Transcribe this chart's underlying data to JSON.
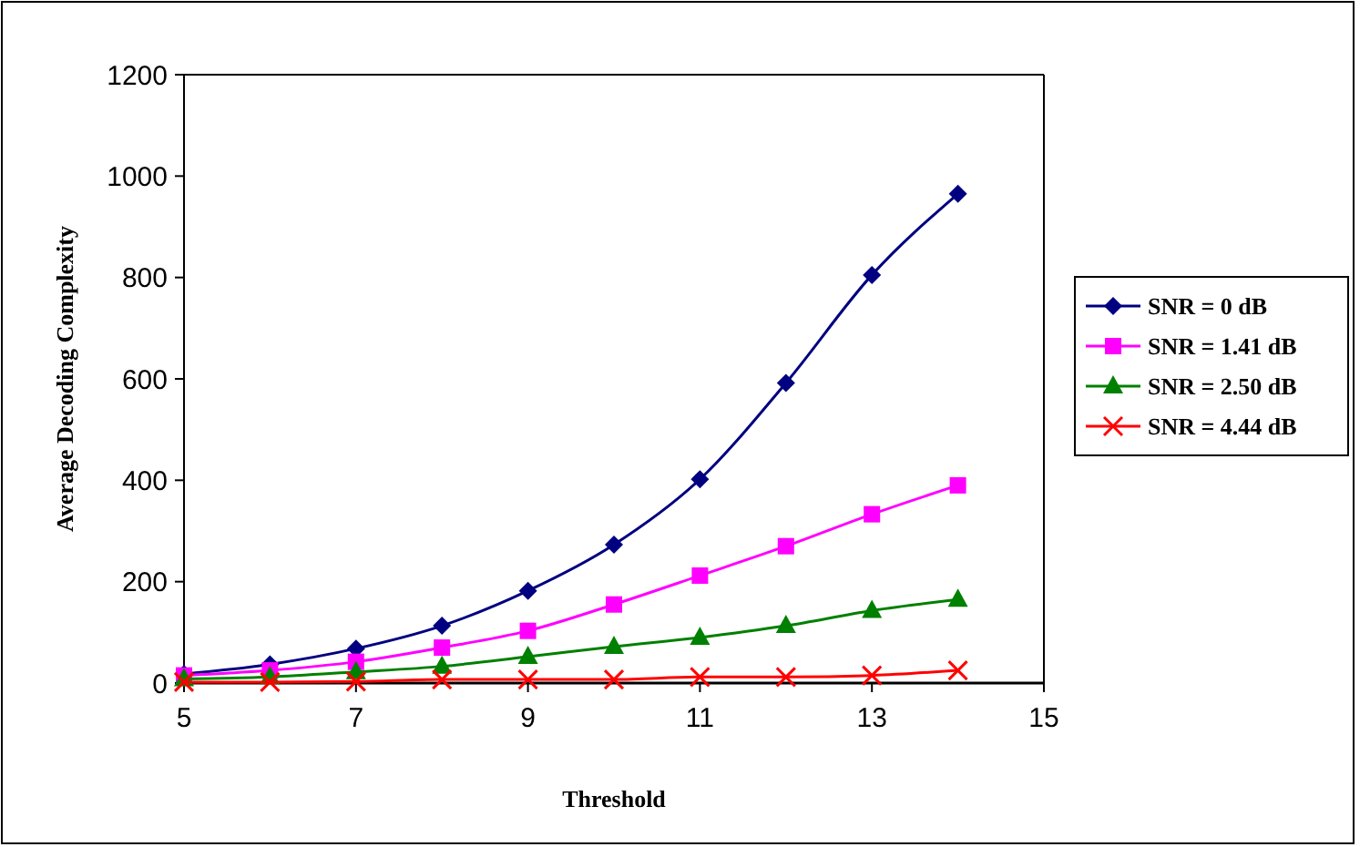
{
  "chart_data": {
    "type": "line",
    "xlabel": "Threshold",
    "ylabel": "Average Decoding Complexity",
    "x": [
      5,
      6,
      7,
      8,
      9,
      10,
      11,
      12,
      13,
      14
    ],
    "xlim": [
      5,
      15
    ],
    "xticks": [
      5,
      7,
      9,
      11,
      13,
      15
    ],
    "ylim": [
      0,
      1200
    ],
    "yticks": [
      0,
      200,
      400,
      600,
      800,
      1000,
      1200
    ],
    "grid": false,
    "legend": "right",
    "series": [
      {
        "name": "SNR = 0 dB",
        "color": "#000080",
        "marker": "diamond",
        "values": [
          18,
          37,
          68,
          113,
          182,
          273,
          402,
          592,
          805,
          965
        ]
      },
      {
        "name": "SNR = 1.41 dB",
        "color": "#ff00ff",
        "marker": "square",
        "values": [
          15,
          25,
          42,
          70,
          103,
          155,
          212,
          270,
          333,
          390
        ]
      },
      {
        "name": "SNR = 2.50 dB",
        "color": "#008000",
        "marker": "triangle",
        "values": [
          8,
          12,
          22,
          33,
          52,
          72,
          90,
          113,
          143,
          165
        ]
      },
      {
        "name": "SNR = 4.44 dB",
        "color": "#ff0000",
        "marker": "cross",
        "values": [
          2,
          2,
          3,
          7,
          7,
          7,
          12,
          12,
          15,
          25
        ]
      }
    ]
  }
}
